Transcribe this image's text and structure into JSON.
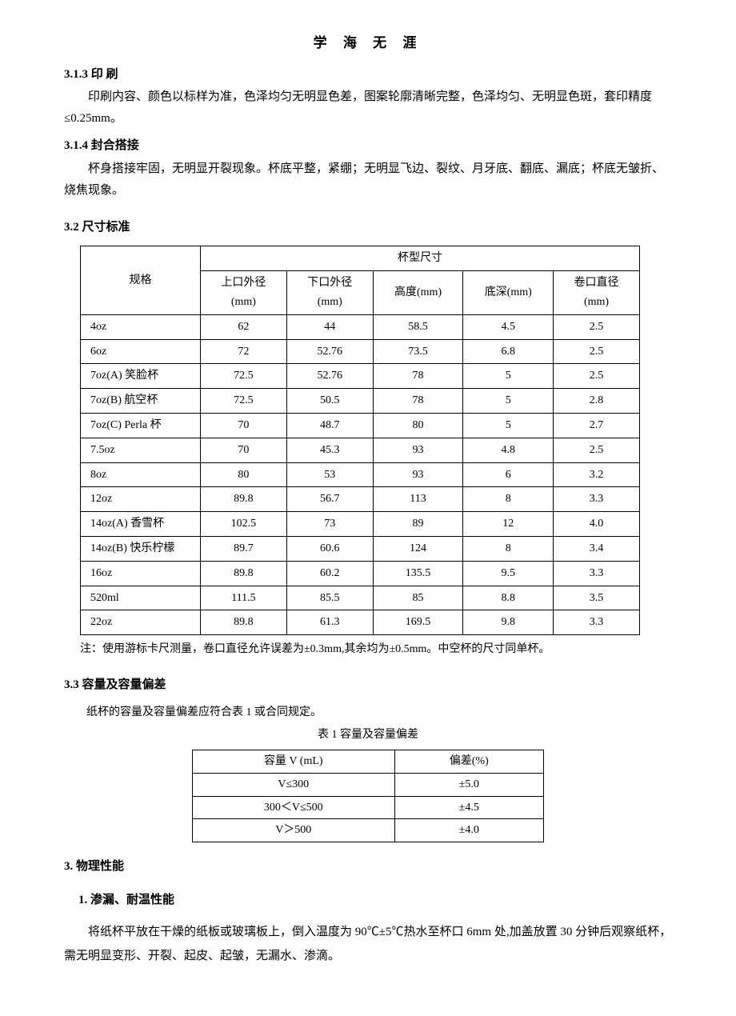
{
  "header": "学 海 无  涯",
  "s313": {
    "num": "3.1.3 印  刷",
    "p": "印刷内容、颜色以标样为准，色泽均匀无明显色差，图案轮廓清晰完整，色泽均匀、无明显色斑，套印精度≤0.25mm。"
  },
  "s314": {
    "num": "3.1.4  封合搭接",
    "p": "杯身搭接牢固，无明显开裂现象。杯底平整，紧绷；无明显飞边、裂纹、月牙底、翻底、漏底；杯底无皱折、烧焦现象。"
  },
  "s32": {
    "num": "3.2    尺寸标准",
    "table": {
      "spec_header": "规格",
      "group_header": "杯型尺寸",
      "cols": [
        {
          "l1": "上口外径",
          "l2": "(mm)"
        },
        {
          "l1": "下口外径",
          "l2": "(mm)"
        },
        {
          "l1": "高度(mm)",
          "l2": ""
        },
        {
          "l1": "底深(mm)",
          "l2": ""
        },
        {
          "l1": "卷口直径",
          "l2": "(mm)"
        }
      ],
      "rows": [
        {
          "spec": "4oz",
          "v": [
            "62",
            "44",
            "58.5",
            "4.5",
            "2.5"
          ]
        },
        {
          "spec": "6oz",
          "v": [
            "72",
            "52.76",
            "73.5",
            "6.8",
            "2.5"
          ]
        },
        {
          "spec": "7oz(A) 笑脸杯",
          "v": [
            "72.5",
            "52.76",
            "78",
            "5",
            "2.5"
          ]
        },
        {
          "spec": "7oz(B) 航空杯",
          "v": [
            "72.5",
            "50.5",
            "78",
            "5",
            "2.8"
          ]
        },
        {
          "spec": "7oz(C) Perla 杯",
          "v": [
            "70",
            "48.7",
            "80",
            "5",
            "2.7"
          ]
        },
        {
          "spec": "7.5oz",
          "v": [
            "70",
            "45.3",
            "93",
            "4.8",
            "2.5"
          ]
        },
        {
          "spec": "8oz",
          "v": [
            "80",
            "53",
            "93",
            "6",
            "3.2"
          ]
        },
        {
          "spec": "12oz",
          "v": [
            "89.8",
            "56.7",
            "113",
            "8",
            "3.3"
          ]
        },
        {
          "spec": "14oz(A) 香雪杯",
          "v": [
            "102.5",
            "73",
            "89",
            "12",
            "4.0"
          ]
        },
        {
          "spec": "14oz(B) 快乐柠檬",
          "v": [
            "89.7",
            "60.6",
            "124",
            "8",
            "3.4"
          ]
        },
        {
          "spec": "16oz",
          "v": [
            "89.8",
            "60.2",
            "135.5",
            "9.5",
            "3.3"
          ]
        },
        {
          "spec": "520ml",
          "v": [
            "111.5",
            "85.5",
            "85",
            "8.8",
            "3.5"
          ]
        },
        {
          "spec": "22oz",
          "v": [
            "89.8",
            "61.3",
            "169.5",
            "9.8",
            "3.3"
          ]
        }
      ]
    },
    "note": "注：使用游标卡尺测量，卷口直径允许误差为±0.3mm,其余均为±0.5mm。中空杯的尺寸同单杯。"
  },
  "s33": {
    "num": "3.3    容量及容量偏差",
    "sub": "纸杯的容量及容量偏差应符合表 1 或合同规定。",
    "caption": "表 1  容量及容量偏差",
    "table": {
      "h1": "容量 V (mL)",
      "h2": "偏差(%)",
      "rows": [
        {
          "a": "V≤300",
          "b": "±5.0"
        },
        {
          "a": "300＜V≤500",
          "b": "±4.5"
        },
        {
          "a": "V＞500",
          "b": "±4.0"
        }
      ]
    }
  },
  "s3": {
    "num": "3.   物理性能"
  },
  "s1": {
    "num": "1.     渗漏、耐温性能",
    "p": "将纸杯平放在干燥的纸板或玻璃板上，倒入温度为 90℃±5℃热水至杯口 6mm 处,加盖放置 30 分钟后观察纸杯，需无明显变形、开裂、起皮、起皱，无漏水、渗滴。"
  }
}
